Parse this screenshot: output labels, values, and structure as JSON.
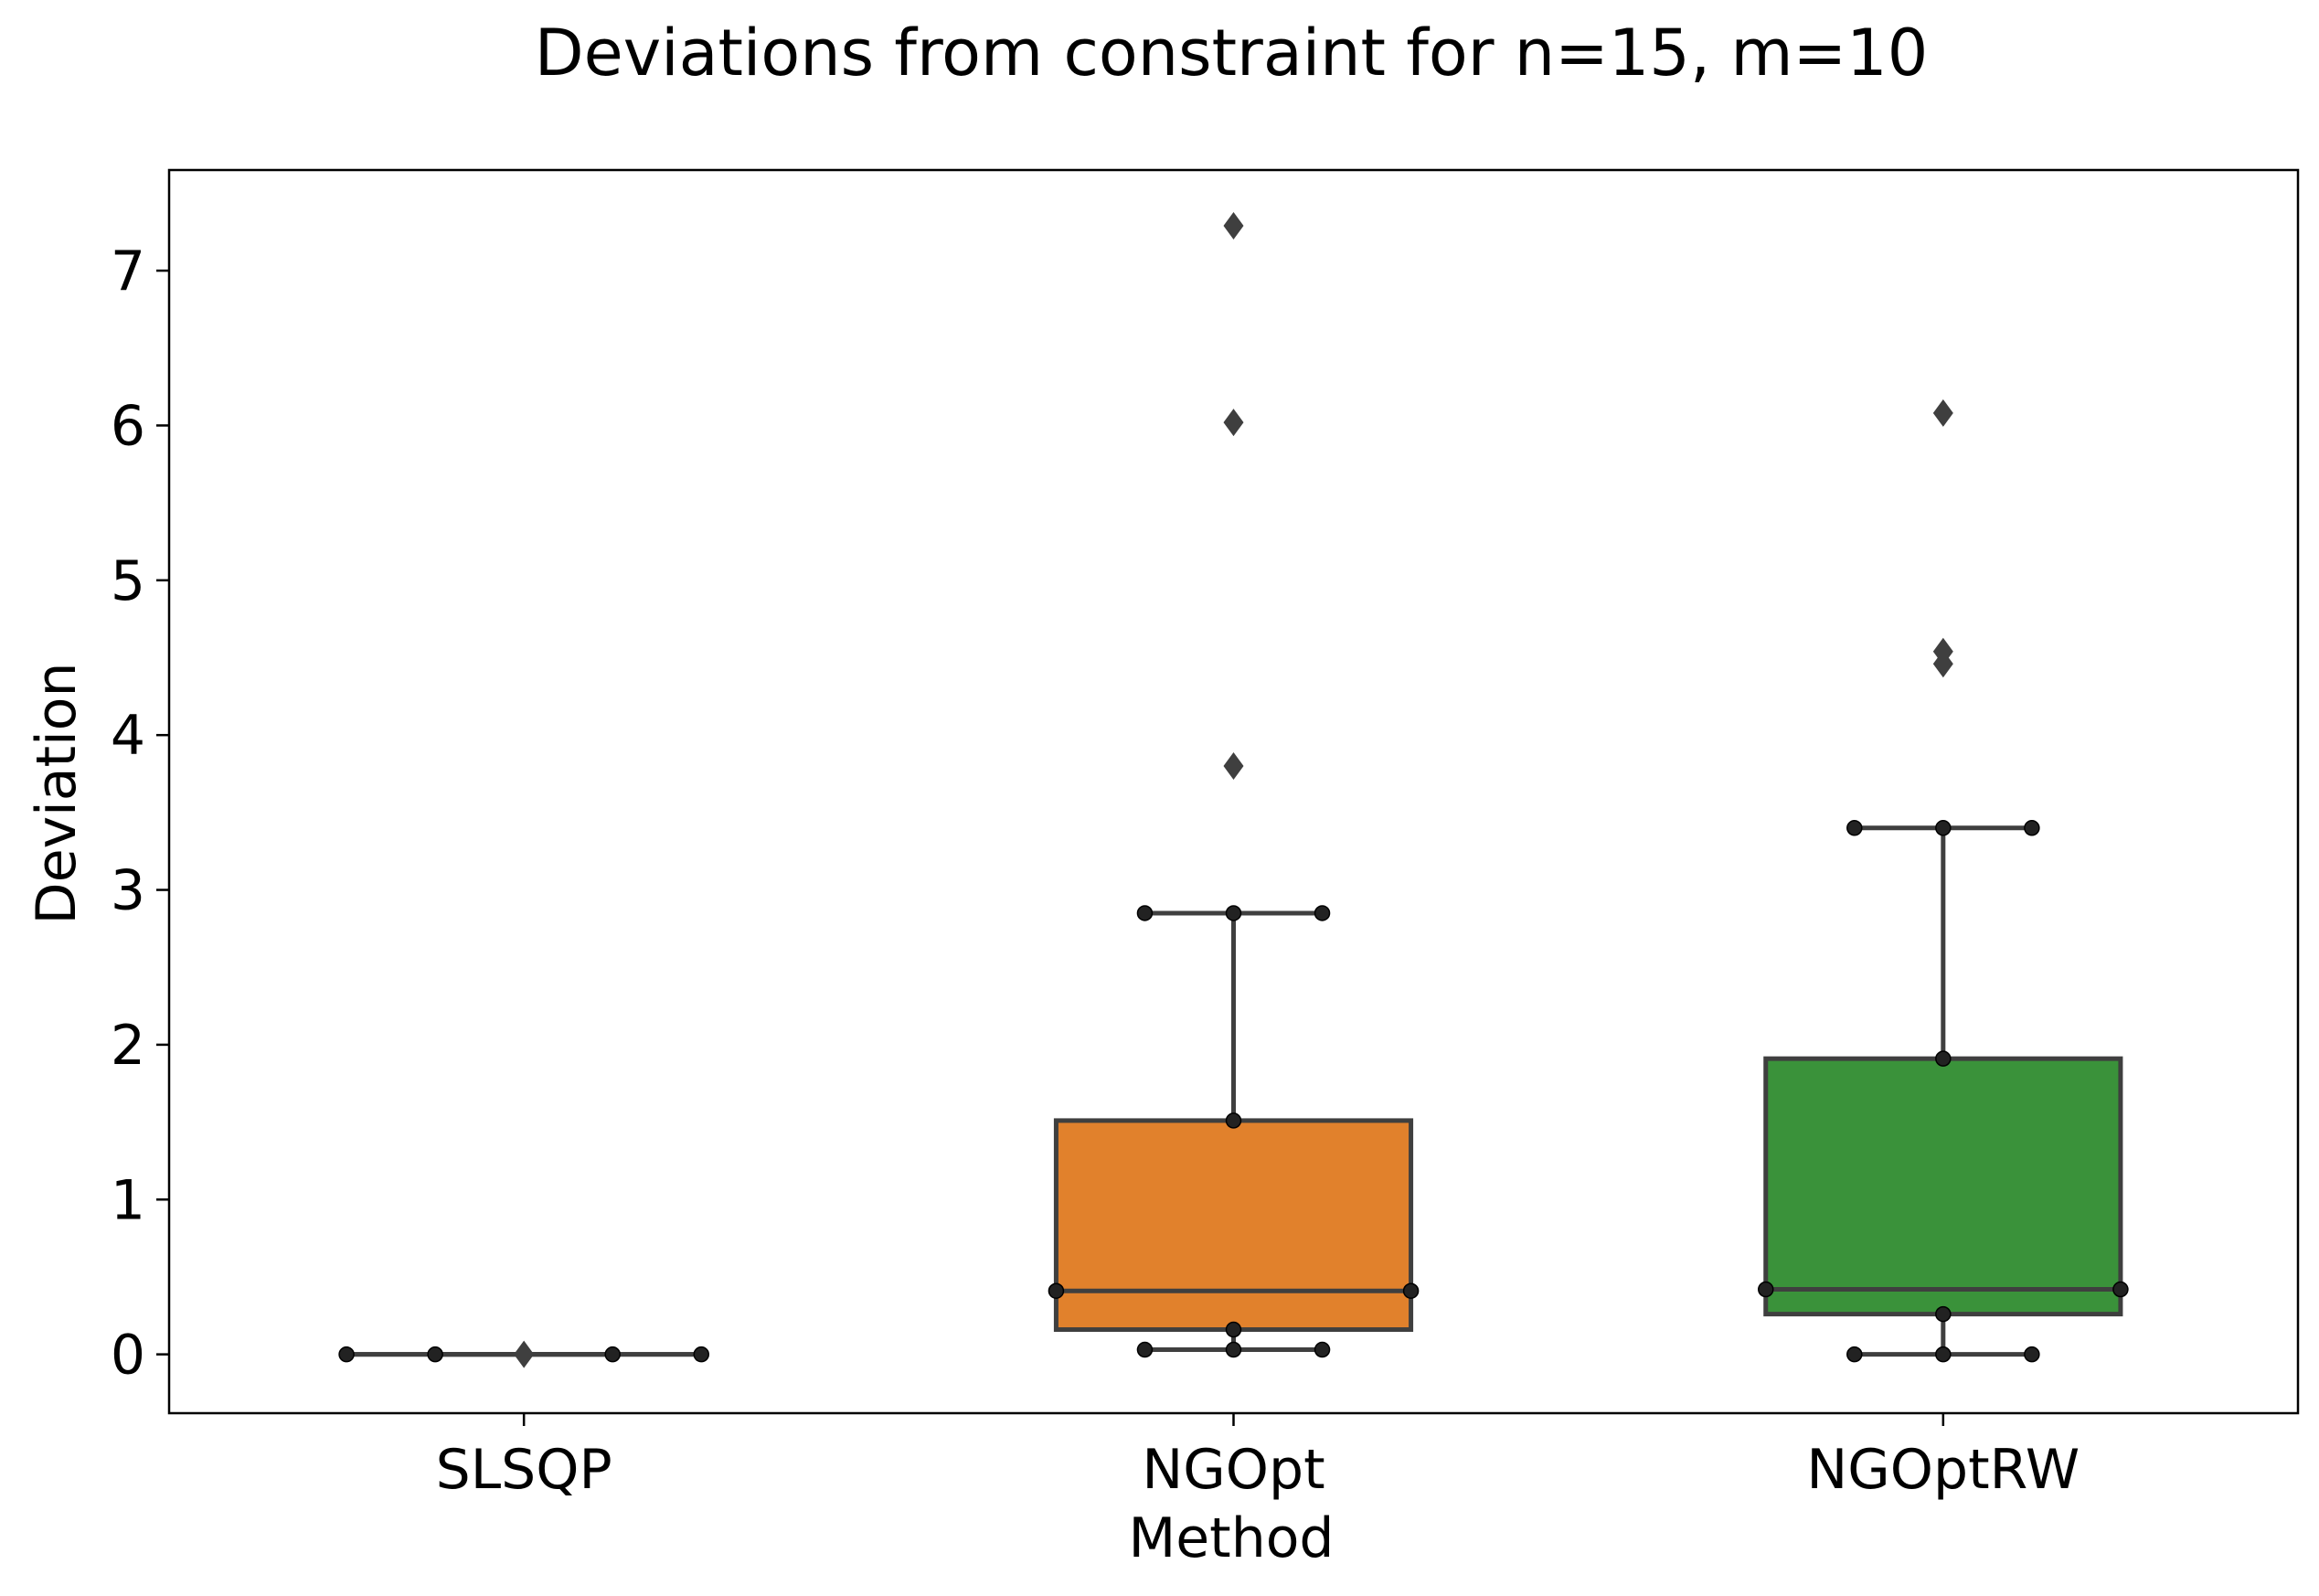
{
  "chart_data": {
    "type": "box",
    "title": "Deviations from constraint for n=15, m=10",
    "xlabel": "Method",
    "ylabel": "Deviation",
    "ylim": [
      -0.38,
      7.65
    ],
    "yticks": [
      0,
      1,
      2,
      3,
      4,
      5,
      6,
      7
    ],
    "grid": false,
    "categories": [
      "SLSQP",
      "NGOpt",
      "NGOptRW"
    ],
    "colors": {
      "SLSQP": "#1f77b4",
      "NGOpt": "#e1812c",
      "NGOptRW": "#3a923a",
      "lines": "#3f3f3f",
      "points": "#222222"
    },
    "boxes": [
      {
        "name": "SLSQP",
        "whisker_low": 0.0,
        "q1": 0.0,
        "median": 0.0,
        "q3": 0.0,
        "whisker_high": 0.0,
        "outliers": [
          0.0
        ],
        "summary_points": [
          0.0,
          0.0,
          0.0,
          0.0
        ]
      },
      {
        "name": "NGOpt",
        "whisker_low": 0.03,
        "q1": 0.16,
        "median": 0.41,
        "q3": 1.51,
        "whisker_high": 2.85,
        "outliers": [
          3.8,
          6.02,
          7.29
        ],
        "summary_points": [
          0.03,
          0.16,
          0.41,
          1.51,
          2.85
        ]
      },
      {
        "name": "NGOptRW",
        "whisker_low": 0.0,
        "q1": 0.26,
        "median": 0.42,
        "q3": 1.91,
        "whisker_high": 3.4,
        "outliers": [
          4.46,
          4.54,
          6.08
        ],
        "summary_points": [
          0.0,
          0.26,
          0.42,
          1.91,
          3.4
        ]
      }
    ]
  }
}
